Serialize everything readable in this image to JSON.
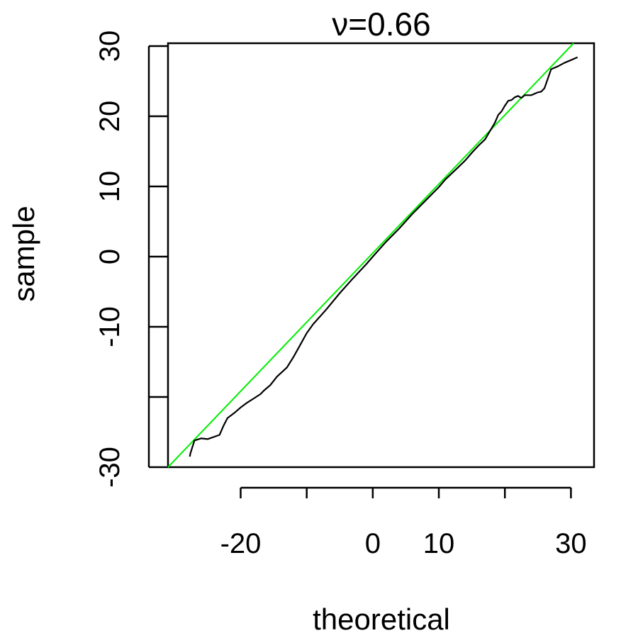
{
  "chart_data": {
    "type": "line",
    "title": "ν=0.66",
    "xlabel": "theoretical",
    "ylabel": "sample",
    "xlim": [
      -31,
      33.5
    ],
    "ylim": [
      -30,
      30.4
    ],
    "x_ticks": [
      -20,
      -10,
      0,
      10,
      20,
      30
    ],
    "x_tick_labels": [
      "-20",
      "",
      "0",
      "10",
      "",
      "30"
    ],
    "y_ticks": [
      -30,
      -20,
      -10,
      0,
      10,
      20,
      30
    ],
    "y_tick_labels": [
      "-30",
      "",
      "-10",
      "0",
      "10",
      "20",
      "30"
    ],
    "grid": false,
    "legend": "none",
    "series": [
      {
        "kind": "reference-line",
        "color": "#00ee00",
        "x": [
          -31,
          30.4
        ],
        "y": [
          -30,
          30.4
        ]
      },
      {
        "kind": "qq-curve",
        "color": "#000000",
        "x": [
          -27.7,
          -27.6,
          -27.0,
          -26.0,
          -25.0,
          -23.2,
          -22.6,
          -22.0,
          -21.0,
          -20.0,
          -19.0,
          -18.0,
          -17.0,
          -16.5,
          -15.5,
          -14.5,
          -13.0,
          -12.0,
          -11.0,
          -10.0,
          -9.0,
          -7.0,
          -5.0,
          -3.0,
          -1.0,
          0.0,
          2.0,
          4.0,
          6.0,
          8.0,
          10.0,
          11.0,
          12.0,
          13.0,
          14.0,
          15.0,
          16.0,
          17.0,
          17.5,
          18.0,
          18.5,
          19.0,
          19.5,
          20.0,
          20.5,
          21.0,
          21.5,
          22.0,
          22.5,
          23.0,
          24.0,
          24.5,
          25.0,
          25.5,
          26.0,
          27.0,
          28.0,
          29.0,
          30.0,
          31.0
        ],
        "y": [
          -28.5,
          -28.0,
          -26.2,
          -25.9,
          -26.0,
          -25.4,
          -24.1,
          -23.0,
          -22.3,
          -21.5,
          -20.8,
          -20.2,
          -19.6,
          -19.1,
          -18.3,
          -17.1,
          -15.8,
          -14.3,
          -12.6,
          -10.9,
          -9.6,
          -7.5,
          -5.2,
          -3.1,
          -1.1,
          0.0,
          2.1,
          4.0,
          6.1,
          8.0,
          9.9,
          11.0,
          11.9,
          12.8,
          13.7,
          14.8,
          15.8,
          16.7,
          17.5,
          18.3,
          19.1,
          20.2,
          20.7,
          21.5,
          22.2,
          22.3,
          22.7,
          22.9,
          22.6,
          23.0,
          23.0,
          23.2,
          23.4,
          23.5,
          24.0,
          26.7,
          27.1,
          27.6,
          28.0,
          28.4
        ]
      }
    ]
  }
}
